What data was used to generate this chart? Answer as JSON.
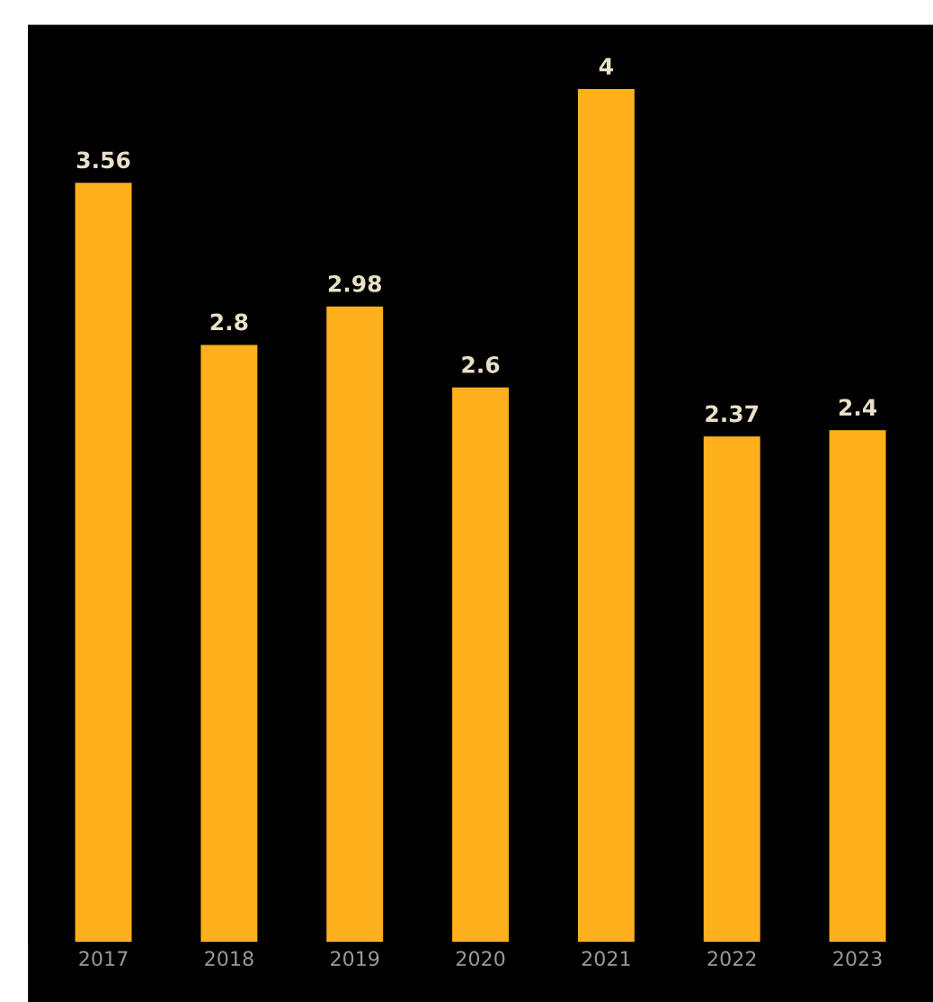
{
  "chart_data": {
    "type": "bar",
    "categories": [
      "2017",
      "2018",
      "2019",
      "2020",
      "2021",
      "2022",
      "2023"
    ],
    "values": [
      3.56,
      2.8,
      2.98,
      2.6,
      4,
      2.37,
      2.4
    ],
    "color": "#ffb01c",
    "data_labels": true,
    "ylim": [
      0,
      4.3
    ],
    "tick_labels": "x",
    "grid": false,
    "legend": false
  }
}
